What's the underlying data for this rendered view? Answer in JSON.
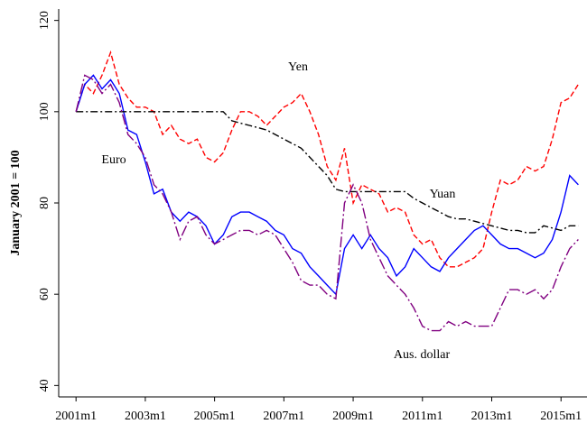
{
  "chart_data": {
    "type": "line",
    "ylabel": "January 2001 = 100",
    "x": [
      "2001m1",
      "2001m4",
      "2001m7",
      "2001m10",
      "2002m1",
      "2002m4",
      "2002m7",
      "2002m10",
      "2003m1",
      "2003m4",
      "2003m7",
      "2003m10",
      "2004m1",
      "2004m4",
      "2004m7",
      "2004m10",
      "2005m1",
      "2005m4",
      "2005m7",
      "2005m10",
      "2006m1",
      "2006m4",
      "2006m7",
      "2006m10",
      "2007m1",
      "2007m4",
      "2007m7",
      "2007m10",
      "2008m1",
      "2008m4",
      "2008m7",
      "2008m10",
      "2009m1",
      "2009m4",
      "2009m7",
      "2009m10",
      "2010m1",
      "2010m4",
      "2010m7",
      "2010m10",
      "2011m1",
      "2011m4",
      "2011m7",
      "2011m10",
      "2012m1",
      "2012m4",
      "2012m7",
      "2012m10",
      "2013m1",
      "2013m4",
      "2013m7",
      "2013m10",
      "2014m1",
      "2014m4",
      "2014m7",
      "2014m10",
      "2015m1",
      "2015m4",
      "2015m7"
    ],
    "series": [
      {
        "name": "Yen",
        "color": "#ff0000",
        "dash": "6,3",
        "values": [
          100,
          106,
          104,
          108,
          113,
          106,
          103,
          101,
          101,
          100,
          95,
          97,
          94,
          93,
          94,
          90,
          89,
          91,
          96,
          100,
          100,
          99,
          97,
          99,
          101,
          102,
          104,
          100,
          95,
          88,
          85,
          92,
          80,
          84,
          83,
          82,
          78,
          79,
          78,
          73,
          71,
          72,
          68,
          66,
          66,
          67,
          68,
          70,
          78,
          85,
          84,
          85,
          88,
          87,
          88,
          94,
          102,
          103,
          106
        ]
      },
      {
        "name": "Euro",
        "color": "#0000ff",
        "dash": "none",
        "values": [
          100,
          106,
          108,
          105,
          107,
          104,
          96,
          95,
          89,
          82,
          83,
          78,
          76,
          78,
          77,
          75,
          71,
          73,
          77,
          78,
          78,
          77,
          76,
          74,
          73,
          70,
          69,
          66,
          64,
          62,
          60,
          70,
          73,
          70,
          73,
          70,
          68,
          64,
          66,
          70,
          68,
          66,
          65,
          68,
          70,
          72,
          74,
          75,
          73,
          71,
          70,
          70,
          69,
          68,
          69,
          72,
          78,
          86,
          84
        ]
      },
      {
        "name": "Yuan",
        "color": "#000000",
        "dash": "8,3,2,3",
        "values": [
          100,
          100,
          100,
          100,
          100,
          100,
          100,
          100,
          100,
          100,
          100,
          100,
          100,
          100,
          100,
          100,
          100,
          100,
          98,
          97.5,
          97,
          96.5,
          96,
          95,
          94,
          93,
          92,
          90,
          88,
          86,
          83,
          82.5,
          82.5,
          82.5,
          82.5,
          82.5,
          82.5,
          82.5,
          82.5,
          81,
          80,
          79,
          78,
          77,
          76.5,
          76.5,
          76,
          75.5,
          75,
          74.5,
          74,
          74,
          73.5,
          73.5,
          75,
          74.5,
          74,
          75,
          75
        ]
      },
      {
        "name": "Aus. dollar",
        "color": "#800080",
        "dash": "12,3,2,3",
        "values": [
          100,
          108,
          107,
          104,
          106,
          102,
          95,
          93,
          90,
          84,
          82,
          78,
          72,
          76,
          77,
          73,
          71,
          72,
          73,
          74,
          74,
          73,
          74,
          73,
          70,
          67,
          63,
          62,
          62,
          60,
          59,
          80,
          84,
          80,
          72,
          68,
          64,
          62,
          60,
          57,
          53,
          52,
          52,
          54,
          53,
          54,
          53,
          53,
          53,
          57,
          61,
          61,
          60,
          61,
          59,
          61,
          66,
          70,
          72
        ]
      }
    ],
    "xlim": [
      "2000m7",
      "2015m10"
    ],
    "xticks": [
      "2001m1",
      "2003m1",
      "2005m1",
      "2007m1",
      "2009m1",
      "2011m1",
      "2013m1",
      "2015m1"
    ],
    "ylim": [
      37.5,
      122.5
    ],
    "yticks": [
      40,
      60,
      80,
      100,
      120
    ],
    "grid": false
  }
}
